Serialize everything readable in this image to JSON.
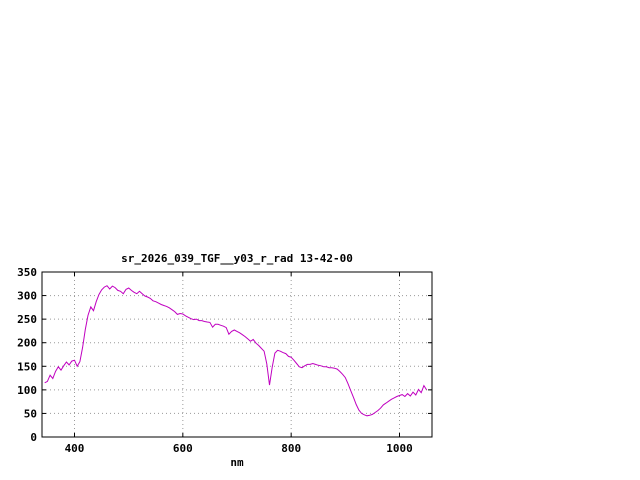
{
  "window": {
    "background": "#ffffff"
  },
  "chart_data": {
    "type": "line",
    "title": "sr_2026_039_TGF__y03_r_rad 13-42-00",
    "xlabel": "nm",
    "ylabel": "",
    "xlim": [
      340,
      1060
    ],
    "ylim": [
      0,
      350
    ],
    "xticks": [
      400,
      600,
      800,
      1000
    ],
    "yticks": [
      0,
      50,
      100,
      150,
      200,
      250,
      300,
      350
    ],
    "grid": true,
    "legend": "none",
    "colors": {
      "line": "#c000c0",
      "grid": "#9a9a9a",
      "border": "#000000",
      "text": "#000000"
    },
    "series": [
      {
        "name": "sr_2026_039_TGF__y03_r_rad",
        "x": [
          345,
          350,
          355,
          360,
          365,
          370,
          375,
          380,
          385,
          390,
          395,
          400,
          405,
          410,
          415,
          420,
          425,
          430,
          435,
          440,
          445,
          450,
          455,
          460,
          465,
          470,
          475,
          480,
          485,
          490,
          495,
          500,
          505,
          510,
          515,
          520,
          525,
          530,
          535,
          540,
          545,
          550,
          555,
          560,
          565,
          570,
          575,
          580,
          585,
          590,
          595,
          600,
          605,
          610,
          615,
          620,
          625,
          630,
          635,
          640,
          645,
          650,
          655,
          660,
          665,
          670,
          675,
          680,
          685,
          690,
          695,
          700,
          705,
          710,
          715,
          720,
          725,
          730,
          735,
          740,
          745,
          750,
          755,
          760,
          765,
          770,
          775,
          780,
          785,
          790,
          795,
          800,
          805,
          810,
          815,
          820,
          825,
          830,
          835,
          840,
          845,
          850,
          855,
          860,
          865,
          870,
          875,
          880,
          885,
          890,
          895,
          900,
          905,
          910,
          915,
          920,
          925,
          930,
          935,
          940,
          945,
          950,
          955,
          960,
          965,
          970,
          975,
          980,
          985,
          990,
          995,
          1000,
          1005,
          1010,
          1015,
          1020,
          1025,
          1030,
          1035,
          1040,
          1045,
          1050
        ],
        "y": [
          115,
          118,
          131,
          124,
          139,
          149,
          142,
          151,
          159,
          153,
          161,
          163,
          150,
          160,
          190,
          228,
          258,
          276,
          268,
          287,
          302,
          312,
          318,
          321,
          314,
          320,
          317,
          311,
          309,
          304,
          313,
          316,
          311,
          307,
          304,
          309,
          304,
          299,
          297,
          294,
          289,
          287,
          284,
          281,
          279,
          277,
          274,
          270,
          266,
          260,
          262,
          261,
          257,
          254,
          251,
          249,
          250,
          247,
          247,
          245,
          244,
          243,
          233,
          239,
          239,
          237,
          235,
          232,
          218,
          224,
          227,
          224,
          221,
          217,
          213,
          208,
          203,
          207,
          199,
          194,
          188,
          182,
          155,
          110,
          148,
          178,
          184,
          182,
          179,
          177,
          171,
          169,
          163,
          156,
          149,
          147,
          151,
          154,
          154,
          156,
          154,
          152,
          151,
          149,
          149,
          147,
          147,
          146,
          144,
          139,
          133,
          126,
          113,
          98,
          84,
          69,
          57,
          50,
          47,
          45,
          46,
          48,
          52,
          56,
          61,
          68,
          72,
          76,
          80,
          83,
          86,
          88,
          90,
          86,
          92,
          87,
          95,
          89,
          101,
          94,
          109,
          100
        ]
      }
    ]
  }
}
